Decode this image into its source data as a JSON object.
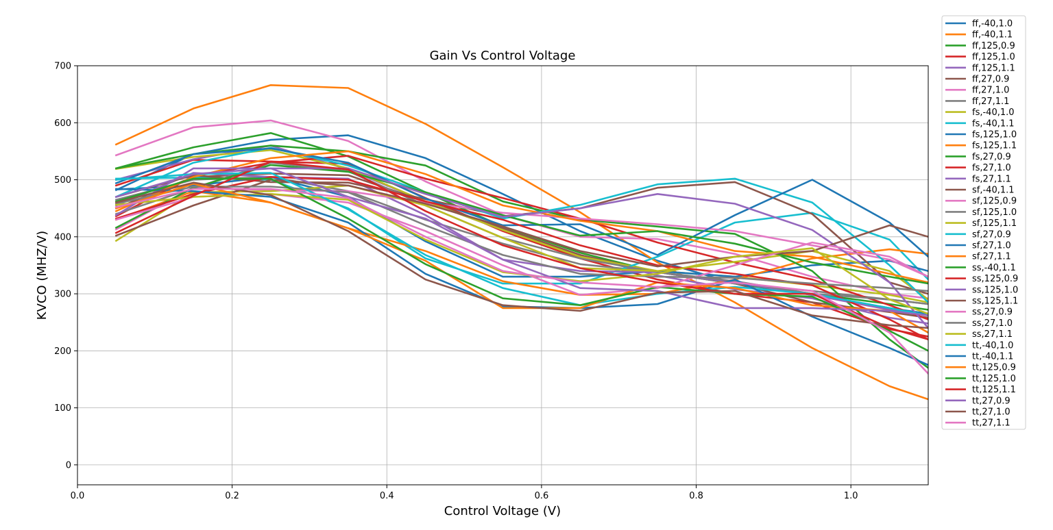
{
  "chart_data": {
    "type": "line",
    "title": "Gain  Vs Control Voltage",
    "xlabel": "Control Voltage (V)",
    "ylabel": "KVCO (MHZ/V)",
    "xlim": [
      0.0,
      1.1
    ],
    "ylim": [
      -35,
      700
    ],
    "xticks": [
      "0.0",
      "0.2",
      "0.4",
      "0.6",
      "0.8",
      "1.0"
    ],
    "yticks": [
      "0",
      "100",
      "200",
      "300",
      "400",
      "500",
      "600",
      "700"
    ],
    "grid": true,
    "legend_position": "outside-top-right",
    "x": [
      0.05,
      0.15,
      0.25,
      0.35,
      0.45,
      0.55,
      0.65,
      0.75,
      0.85,
      0.95,
      1.05,
      1.1
    ],
    "series": [
      {
        "name": "ff,-40,1.0",
        "color": "#1f77b4",
        "values": [
          482,
          545,
          570,
          578,
          538,
          475,
          410,
          358,
          318,
          298,
          275,
          265
        ]
      },
      {
        "name": "ff,-40,1.1",
        "color": "#ff7f0e",
        "values": [
          562,
          625,
          666,
          661,
          598,
          522,
          443,
          355,
          285,
          205,
          138,
          115
        ]
      },
      {
        "name": "ff,125,0.9",
        "color": "#2ca02c",
        "values": [
          520,
          557,
          582,
          541,
          478,
          418,
          372,
          338,
          318,
          300,
          282,
          272
        ]
      },
      {
        "name": "ff,125,1.0",
        "color": "#d62728",
        "values": [
          490,
          535,
          532,
          528,
          468,
          410,
          362,
          325,
          300,
          285,
          238,
          225
        ]
      },
      {
        "name": "ff,125,1.1",
        "color": "#9467bd",
        "values": [
          500,
          536,
          560,
          518,
          462,
          412,
          368,
          332,
          308,
          292,
          258,
          248
        ]
      },
      {
        "name": "ff,27,0.9",
        "color": "#8c564b",
        "values": [
          450,
          505,
          511,
          508,
          462,
          415,
          368,
          338,
          318,
          285,
          268,
          258
        ]
      },
      {
        "name": "ff,27,1.0",
        "color": "#e377c2",
        "values": [
          543,
          592,
          604,
          568,
          497,
          438,
          400,
          396,
          370,
          330,
          300,
          292
        ]
      },
      {
        "name": "ff,27,1.1",
        "color": "#7f7f7f",
        "values": [
          465,
          500,
          505,
          480,
          430,
          388,
          352,
          338,
          318,
          305,
          290,
          282
        ]
      },
      {
        "name": "fs,-40,1.0",
        "color": "#bcbd22",
        "values": [
          519,
          540,
          552,
          520,
          462,
          412,
          365,
          340,
          330,
          315,
          298,
          285
        ]
      },
      {
        "name": "fs,-40,1.1",
        "color": "#17becf",
        "values": [
          502,
          504,
          500,
          450,
          362,
          318,
          318,
          365,
          425,
          442,
          395,
          325
        ]
      },
      {
        "name": "fs,125,1.0",
        "color": "#1f77b4",
        "values": [
          483,
          490,
          505,
          470,
          392,
          330,
          330,
          340,
          330,
          350,
          358,
          340
        ]
      },
      {
        "name": "fs,125,1.1",
        "color": "#ff7f0e",
        "values": [
          430,
          480,
          460,
          415,
          375,
          322,
          298,
          300,
          325,
          362,
          378,
          370
        ]
      },
      {
        "name": "fs,27,0.9",
        "color": "#2ca02c",
        "values": [
          520,
          545,
          560,
          550,
          525,
          462,
          430,
          418,
          405,
          340,
          220,
          170
        ]
      },
      {
        "name": "fs,27,1.0",
        "color": "#d62728",
        "values": [
          436,
          506,
          530,
          542,
          502,
          468,
          432,
          390,
          355,
          325,
          280,
          255
        ]
      },
      {
        "name": "fs,27,1.1",
        "color": "#9467bd",
        "values": [
          455,
          512,
          505,
          502,
          438,
          360,
          340,
          338,
          320,
          298,
          272,
          262
        ]
      },
      {
        "name": "sf,-40,1.1",
        "color": "#8c564b",
        "values": [
          470,
          508,
          496,
          495,
          466,
          436,
          450,
          486,
          496,
          440,
          320,
          300
        ]
      },
      {
        "name": "sf,125,0.9",
        "color": "#e377c2",
        "values": [
          413,
          486,
          482,
          480,
          460,
          442,
          432,
          422,
          410,
          385,
          360,
          330
        ]
      },
      {
        "name": "sf,125,1.0",
        "color": "#7f7f7f",
        "values": [
          440,
          485,
          530,
          515,
          455,
          398,
          362,
          338,
          322,
          300,
          290,
          282
        ]
      },
      {
        "name": "sf,125,1.1",
        "color": "#bcbd22",
        "values": [
          393,
          478,
          480,
          490,
          455,
          398,
          345,
          340,
          356,
          375,
          340,
          290
        ]
      },
      {
        "name": "sf,27,0.9",
        "color": "#17becf",
        "values": [
          470,
          530,
          556,
          525,
          478,
          432,
          456,
          492,
          502,
          460,
          350,
          285
        ]
      },
      {
        "name": "sf,27,1.0",
        "color": "#1f77b4",
        "values": [
          494,
          545,
          555,
          530,
          467,
          420,
          422,
          368,
          438,
          500,
          425,
          365
        ]
      },
      {
        "name": "sf,27,1.1",
        "color": "#ff7f0e",
        "values": [
          445,
          505,
          538,
          550,
          510,
          455,
          428,
          410,
          375,
          365,
          335,
          320
        ]
      },
      {
        "name": "ss,-40,1.1",
        "color": "#2ca02c",
        "values": [
          416,
          486,
          526,
          514,
          478,
          438,
          402,
          410,
          388,
          355,
          330,
          318
        ]
      },
      {
        "name": "ss,125,0.9",
        "color": "#d62728",
        "values": [
          432,
          475,
          505,
          500,
          462,
          430,
          385,
          350,
          335,
          315,
          255,
          220
        ]
      },
      {
        "name": "ss,125,1.0",
        "color": "#9467bd",
        "values": [
          438,
          520,
          520,
          520,
          475,
          435,
          450,
          475,
          458,
          412,
          320,
          240
        ]
      },
      {
        "name": "ss,125,1.1",
        "color": "#8c564b",
        "values": [
          402,
          455,
          500,
          490,
          458,
          418,
          375,
          348,
          365,
          375,
          420,
          400
        ]
      },
      {
        "name": "ss,27,0.9",
        "color": "#e377c2",
        "values": [
          430,
          470,
          475,
          460,
          410,
          350,
          298,
          310,
          350,
          390,
          365,
          330
        ]
      },
      {
        "name": "ss,27,1.0",
        "color": "#7f7f7f",
        "values": [
          458,
          488,
          488,
          478,
          420,
          368,
          335,
          330,
          328,
          318,
          310,
          305
        ]
      },
      {
        "name": "ss,27,1.1",
        "color": "#bcbd22",
        "values": [
          456,
          470,
          475,
          465,
          395,
          338,
          322,
          335,
          365,
          380,
          290,
          265
        ]
      },
      {
        "name": "tt,-40,1.0",
        "color": "#17becf",
        "values": [
          500,
          510,
          512,
          448,
          368,
          310,
          280,
          300,
          312,
          300,
          275,
          262
        ]
      },
      {
        "name": "tt,-40,1.1",
        "color": "#1f77b4",
        "values": [
          484,
          480,
          470,
          425,
          335,
          278,
          275,
          282,
          325,
          260,
          205,
          175
        ]
      },
      {
        "name": "tt,125,0.9",
        "color": "#ff7f0e",
        "values": [
          450,
          493,
          460,
          415,
          358,
          275,
          275,
          320,
          310,
          280,
          270,
          232
        ]
      },
      {
        "name": "tt,125,1.0",
        "color": "#2ca02c",
        "values": [
          462,
          502,
          502,
          432,
          352,
          292,
          280,
          312,
          300,
          295,
          235,
          200
        ]
      },
      {
        "name": "tt,125,1.1",
        "color": "#d62728",
        "values": [
          407,
          472,
          532,
          518,
          445,
          385,
          345,
          320,
          300,
          300,
          240,
          220
        ]
      },
      {
        "name": "tt,27,0.9",
        "color": "#9467bd",
        "values": [
          470,
          510,
          520,
          470,
          432,
          360,
          310,
          305,
          275,
          275,
          270,
          262
        ]
      },
      {
        "name": "tt,27,1.0",
        "color": "#8c564b",
        "values": [
          460,
          495,
          473,
          410,
          325,
          280,
          270,
          302,
          305,
          262,
          245,
          240
        ]
      },
      {
        "name": "tt,27,1.1",
        "color": "#e377c2",
        "values": [
          452,
          484,
          484,
          468,
          400,
          340,
          320,
          312,
          320,
          305,
          232,
          160
        ]
      }
    ]
  }
}
